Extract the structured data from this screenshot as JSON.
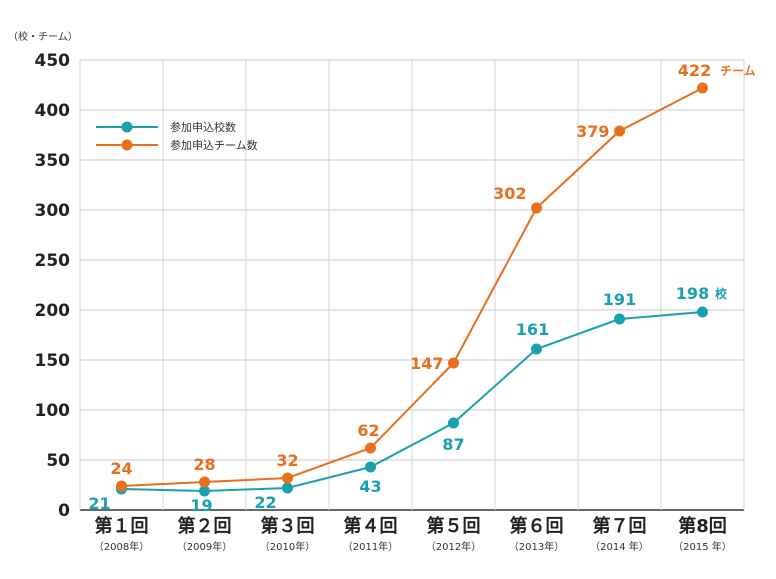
{
  "chart_data": {
    "type": "line",
    "unit_label": "（校・チーム）",
    "categories": [
      "第１回",
      "第２回",
      "第３回",
      "第４回",
      "第５回",
      "第６回",
      "第７回",
      "第8回"
    ],
    "category_years": [
      "（2008年）",
      "（2009年）",
      "（2010年）",
      "（2011年）",
      "（2012年）",
      "（2013年）",
      "（2014 年）",
      "（2015 年）"
    ],
    "yticks": [
      "0",
      "50",
      "100",
      "150",
      "200",
      "250",
      "300",
      "350",
      "400",
      "450"
    ],
    "ylim": [
      0,
      450
    ],
    "grid": true,
    "legend_position": "top-left",
    "series": [
      {
        "name": "参加申込校数",
        "color": "#1aa0ae",
        "values": [
          21,
          19,
          22,
          43,
          87,
          161,
          191,
          198
        ],
        "labels": [
          "21",
          "19",
          "22",
          "43",
          "87",
          "161",
          "191",
          "198"
        ],
        "final_suffix": "校"
      },
      {
        "name": "参加申込チーム数",
        "color": "#e8701c",
        "values": [
          24,
          28,
          32,
          62,
          147,
          302,
          379,
          422
        ],
        "labels": [
          "24",
          "28",
          "32",
          "62",
          "147",
          "302",
          "379",
          "422"
        ],
        "final_suffix": "チーム"
      }
    ]
  }
}
